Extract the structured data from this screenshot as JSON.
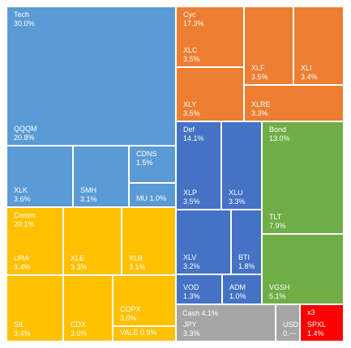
{
  "chart_data": {
    "type": "treemap",
    "colors": {
      "Tech": "#5b9bd5",
      "Cyc": "#ed7d31",
      "Def": "#4472c4",
      "Bond": "#70ad47",
      "Comm": "#ffc000",
      "Cash": "#a5a5a5",
      "x3": "#ff0000"
    },
    "groups": [
      {
        "id": "tech",
        "name": "Tech",
        "weight": "30.0%",
        "color": "#5b9bd5"
      },
      {
        "id": "cyc",
        "name": "Cyc",
        "weight": "17.3%",
        "color": "#ed7d31"
      },
      {
        "id": "def",
        "name": "Def",
        "weight": "14.1%",
        "color": "#4472c4"
      },
      {
        "id": "bond",
        "name": "Bond",
        "weight": "13.0%",
        "color": "#70ad47"
      },
      {
        "id": "comm",
        "name": "Comm",
        "weight": "20.1%",
        "color": "#ffc000"
      },
      {
        "id": "cash",
        "name": "Cash",
        "weight": "4.1%",
        "color": "#a5a5a5"
      },
      {
        "id": "x3",
        "name": "x3",
        "weight": "",
        "color": "#ff0000"
      }
    ],
    "holdings": [
      {
        "id": "qqqm",
        "group": "tech",
        "ticker": "QQQM",
        "weight": "20.8%",
        "value": 20.8
      },
      {
        "id": "xlk",
        "group": "tech",
        "ticker": "XLK",
        "weight": "3.6%",
        "value": 3.6
      },
      {
        "id": "smh",
        "group": "tech",
        "ticker": "SMH",
        "weight": "3.1%",
        "value": 3.1
      },
      {
        "id": "cdns",
        "group": "tech",
        "ticker": "CDNS",
        "weight": "1.5%",
        "value": 1.5
      },
      {
        "id": "mu",
        "group": "tech",
        "ticker": "MU",
        "weight": "1.0%",
        "value": 1.0
      },
      {
        "id": "xlc",
        "group": "cyc",
        "ticker": "XLC",
        "weight": "3.5%",
        "value": 3.5
      },
      {
        "id": "xlf",
        "group": "cyc",
        "ticker": "XLF",
        "weight": "3.5%",
        "value": 3.5
      },
      {
        "id": "xli",
        "group": "cyc",
        "ticker": "XLI",
        "weight": "3.4%",
        "value": 3.4
      },
      {
        "id": "xly",
        "group": "cyc",
        "ticker": "XLY",
        "weight": "3.5%",
        "value": 3.5
      },
      {
        "id": "xlre",
        "group": "cyc",
        "ticker": "XLRE",
        "weight": "3.3%",
        "value": 3.3
      },
      {
        "id": "xlp",
        "group": "def",
        "ticker": "XLP",
        "weight": "3.5%",
        "value": 3.5
      },
      {
        "id": "xlu",
        "group": "def",
        "ticker": "XLU",
        "weight": "3.3%",
        "value": 3.3
      },
      {
        "id": "xlv",
        "group": "def",
        "ticker": "XLV",
        "weight": "3.2%",
        "value": 3.2
      },
      {
        "id": "bti",
        "group": "def",
        "ticker": "BTI",
        "weight": "1.8%",
        "value": 1.8
      },
      {
        "id": "vod",
        "group": "def",
        "ticker": "VOD",
        "weight": "1.3%",
        "value": 1.3
      },
      {
        "id": "adm",
        "group": "def",
        "ticker": "ADM",
        "weight": "1.0%",
        "value": 1.0
      },
      {
        "id": "tlt",
        "group": "bond",
        "ticker": "TLT",
        "weight": "7.9%",
        "value": 7.9
      },
      {
        "id": "vgsh",
        "group": "bond",
        "ticker": "VGSH",
        "weight": "5.1%",
        "value": 5.1
      },
      {
        "id": "ura",
        "group": "comm",
        "ticker": "URA",
        "weight": "3.4%",
        "value": 3.4
      },
      {
        "id": "xle",
        "group": "comm",
        "ticker": "XLE",
        "weight": "3.3%",
        "value": 3.3
      },
      {
        "id": "xlb",
        "group": "comm",
        "ticker": "XLB",
        "weight": "3.1%",
        "value": 3.1
      },
      {
        "id": "sil",
        "group": "comm",
        "ticker": "SIL",
        "weight": "3.4%",
        "value": 3.4
      },
      {
        "id": "cdx",
        "group": "comm",
        "ticker": "CDX",
        "weight": "3.0%",
        "value": 3.0
      },
      {
        "id": "copx",
        "group": "comm",
        "ticker": "COPX",
        "weight": "3.0%",
        "value": 3.0
      },
      {
        "id": "vale",
        "group": "comm",
        "ticker": "VALE",
        "weight": "0.9%",
        "value": 0.9
      },
      {
        "id": "jpy",
        "group": "cash",
        "ticker": "JPY",
        "weight": "3.3%",
        "value": 3.3
      },
      {
        "id": "usd",
        "group": "cash",
        "ticker": "USD",
        "weight": "0.---",
        "value": null
      },
      {
        "id": "spxl",
        "group": "x3",
        "ticker": "SPXL",
        "weight": "1.4%",
        "value": 1.4
      }
    ]
  }
}
